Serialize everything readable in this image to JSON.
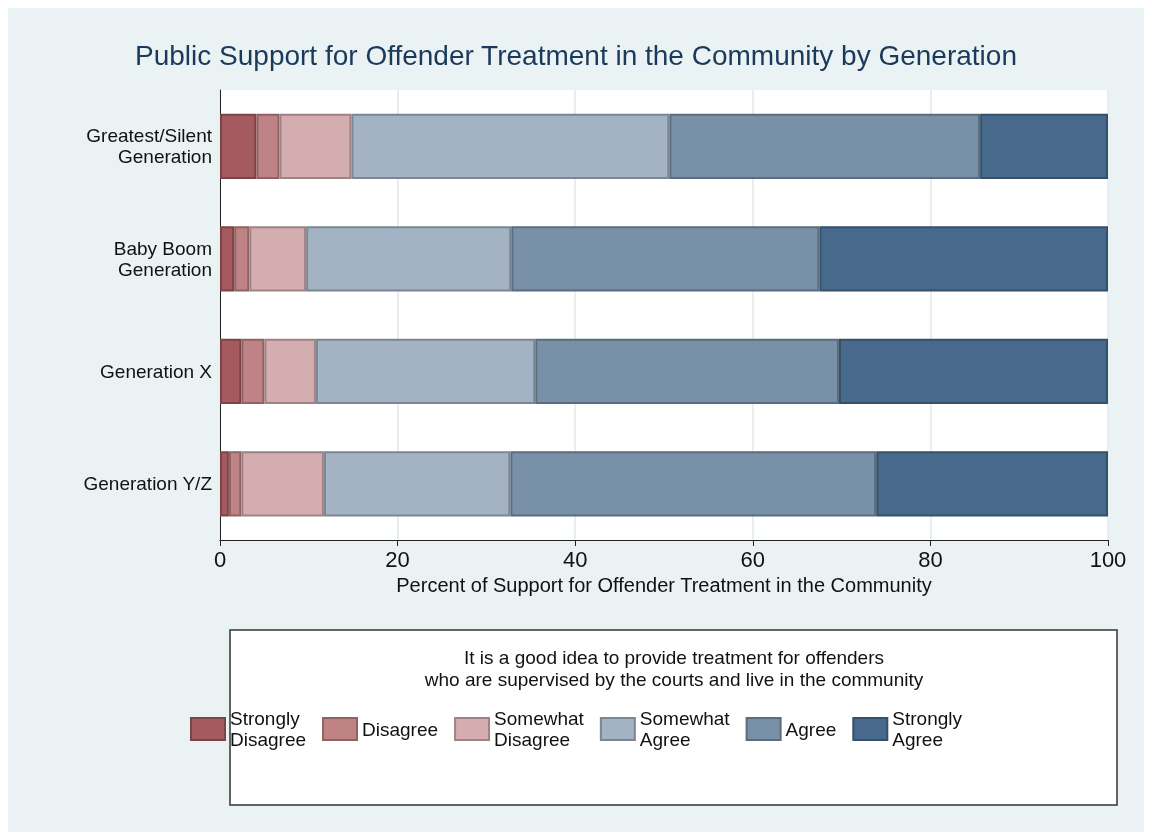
{
  "chart_data": {
    "type": "bar",
    "orientation": "horizontal",
    "stacked": true,
    "title": "Public Support for Offender Treatment in the Community by Generation",
    "xlabel": "Percent of Support for Offender Treatment in the Community",
    "legend_title": "It is a good idea to provide treatment for offenders\nwho are supervised by the courts and live in the community",
    "categories": [
      "Greatest/Silent\nGeneration",
      "Baby Boom\nGeneration",
      "Generation X",
      "Generation Y/Z"
    ],
    "series": [
      {
        "name": "Strongly Disagree",
        "color": "#a45a5e",
        "values": [
          4.1,
          1.6,
          2.4,
          1.0
        ]
      },
      {
        "name": "Disagree",
        "color": "#bf8385",
        "values": [
          2.6,
          1.7,
          2.6,
          1.4
        ]
      },
      {
        "name": "Somewhat Disagree",
        "color": "#d4adb0",
        "values": [
          8.1,
          6.4,
          5.8,
          9.3
        ]
      },
      {
        "name": "Somewhat Agree",
        "color": "#a3b3c3",
        "values": [
          35.8,
          23.1,
          24.7,
          21.0
        ]
      },
      {
        "name": "Agree",
        "color": "#7890a8",
        "values": [
          35.0,
          34.7,
          34.2,
          41.2
        ]
      },
      {
        "name": "Strongly Agree",
        "color": "#476a8c",
        "values": [
          14.4,
          32.5,
          30.3,
          26.1
        ]
      }
    ],
    "xlim": [
      0,
      100
    ],
    "xticks": [
      0,
      20,
      40,
      60,
      80,
      100
    ],
    "grid": "x",
    "legend": "bottom"
  }
}
